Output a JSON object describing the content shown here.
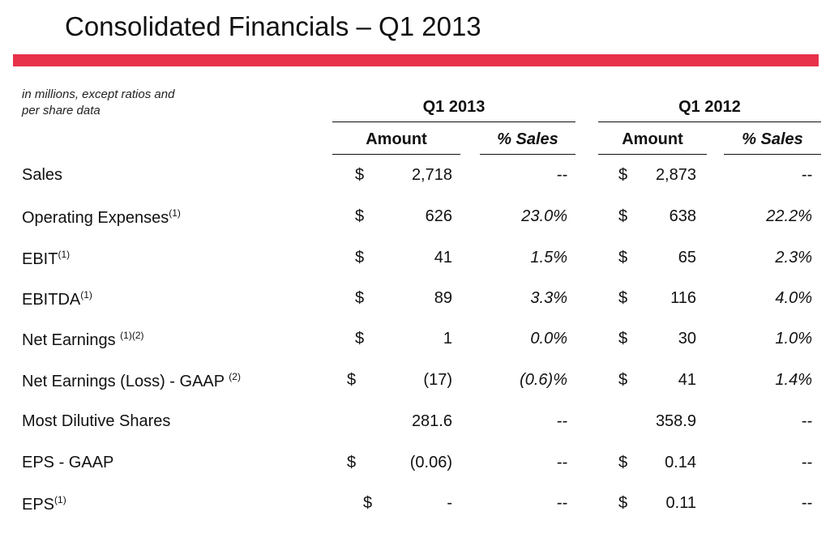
{
  "title": "Consolidated Financials – Q1 2013",
  "note_line1": "in millions, except ratios and",
  "note_line2": "per share data",
  "periods": [
    {
      "label": "Q1 2013",
      "amount_header": "Amount",
      "pct_header": "% Sales"
    },
    {
      "label": "Q1 2012",
      "amount_header": "Amount",
      "pct_header": "% Sales"
    }
  ],
  "colors": {
    "accent": "#e8314a"
  },
  "rows": [
    {
      "label": "Sales",
      "sup": "",
      "cur1": "$",
      "amt1": "2,718",
      "pct1": "--",
      "cur2": "$",
      "amt2": "2,873",
      "pct2": "--"
    },
    {
      "label": "Operating Expenses",
      "sup": "(1)",
      "cur1": "$",
      "amt1": "626",
      "pct1": "23.0%",
      "cur2": "$",
      "amt2": "638",
      "pct2": "22.2%"
    },
    {
      "label": "EBIT",
      "sup": "(1)",
      "cur1": "$",
      "amt1": "41",
      "pct1": "1.5%",
      "cur2": "$",
      "amt2": "65",
      "pct2": "2.3%"
    },
    {
      "label": "EBITDA",
      "sup": "(1)",
      "cur1": "$",
      "amt1": "89",
      "pct1": "3.3%",
      "cur2": "$",
      "amt2": "116",
      "pct2": "4.0%"
    },
    {
      "label": "Net Earnings ",
      "sup": "(1)(2)",
      "cur1": "$",
      "amt1": "1",
      "pct1": "0.0%",
      "cur2": "$",
      "amt2": "30",
      "pct2": "1.0%"
    },
    {
      "label": "Net Earnings (Loss) - GAAP ",
      "sup": "(2)",
      "cur1": "$",
      "amt1": "(17)",
      "pct1": "(0.6)%",
      "cur2": "$",
      "amt2": "41",
      "pct2": "1.4%"
    },
    {
      "label": "Most Dilutive Shares",
      "sup": "",
      "cur1": "",
      "amt1": "281.6",
      "pct1": "--",
      "cur2": "",
      "amt2": "358.9",
      "pct2": "--"
    },
    {
      "label": "EPS - GAAP",
      "sup": "",
      "cur1": "$",
      "amt1": "(0.06)",
      "pct1": "--",
      "cur2": "$",
      "amt2": "0.14",
      "pct2": "--"
    },
    {
      "label": "EPS",
      "sup": "(1)",
      "cur1": "$",
      "amt1": "-",
      "pct1": "--",
      "cur2": "$",
      "amt2": "0.11",
      "pct2": "--"
    }
  ]
}
